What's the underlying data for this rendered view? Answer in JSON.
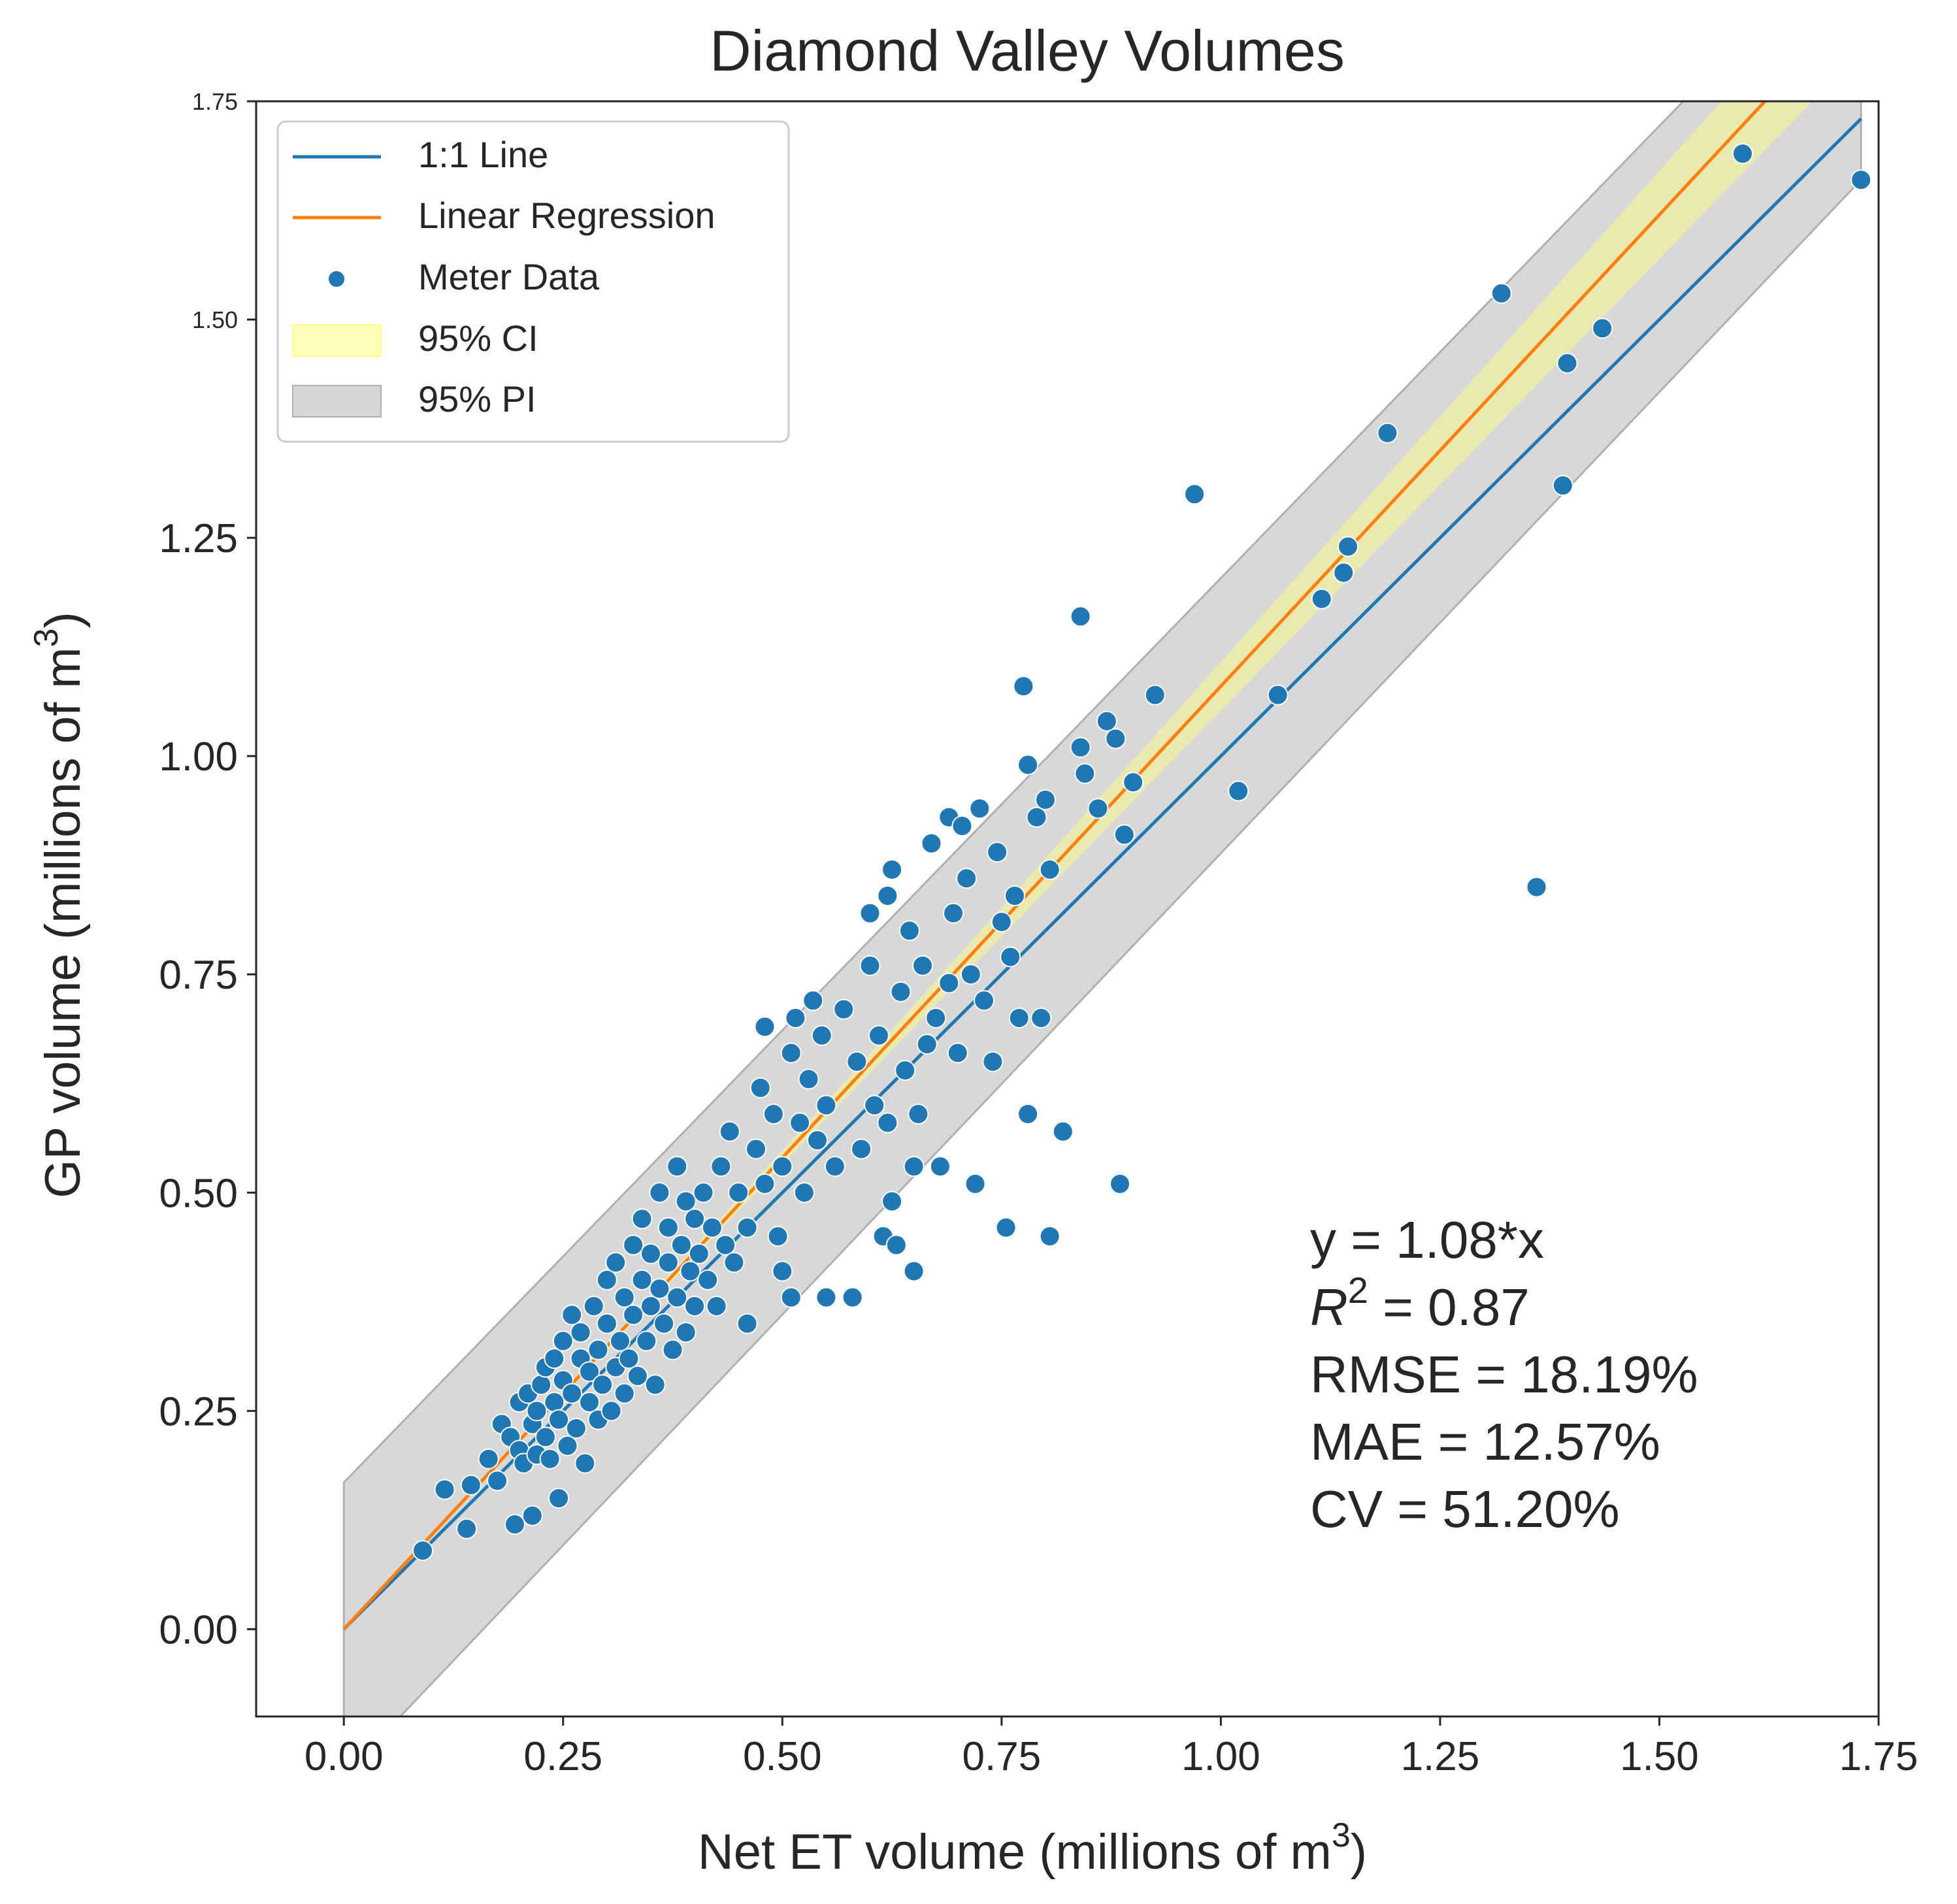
{
  "colors": {
    "one_to_one": "#1f77b4",
    "regression": "#ff7f0e",
    "points": "#1f77b4",
    "ci_fill": "#ffff80",
    "pi_fill": "#c8c8c8",
    "frame": "#262626"
  },
  "chart_data": {
    "type": "scatter",
    "title": "Diamond Valley Volumes",
    "xlabel_main": "Net ET volume (millions of m",
    "xlabel_sup": "3",
    "xlabel_tail": ")",
    "ylabel_main": "GP volume (millions of m",
    "ylabel_sup": "3",
    "ylabel_tail": ")",
    "xlim": [
      -0.1,
      1.75
    ],
    "ylim": [
      -0.1,
      1.75
    ],
    "xticks": [
      "0.00",
      "0.25",
      "0.50",
      "0.75",
      "1.00",
      "1.25",
      "1.50",
      "1.75"
    ],
    "yticks": [
      "0.00",
      "0.25",
      "0.50",
      "0.75",
      "1.00",
      "1.25",
      "1.50",
      "1.75"
    ],
    "grid": false,
    "legend_position": "top-left",
    "legend": [
      {
        "label": "1:1 Line",
        "kind": "line",
        "color_key": "one_to_one"
      },
      {
        "label": "Linear Regression",
        "kind": "line",
        "color_key": "regression"
      },
      {
        "label": "Meter Data",
        "kind": "marker",
        "color_key": "points"
      },
      {
        "label": "95% CI",
        "kind": "patch",
        "color_key": "ci_fill"
      },
      {
        "label": "95% PI",
        "kind": "patch",
        "color_key": "pi_fill"
      }
    ],
    "one_to_one_line": {
      "x": [
        0.0,
        1.73
      ],
      "y": [
        0.0,
        1.73
      ]
    },
    "regression": {
      "slope": 1.08,
      "x": [
        0.0,
        1.73
      ]
    },
    "ci_band": {
      "x": [
        0.0,
        0.2,
        0.4,
        0.6,
        0.8,
        1.0,
        1.2,
        1.4,
        1.6,
        1.73
      ],
      "lower": [
        0.0,
        0.213,
        0.426,
        0.637,
        0.845,
        1.052,
        1.259,
        1.466,
        1.673,
        1.807
      ],
      "upper": [
        0.0,
        0.219,
        0.438,
        0.659,
        0.883,
        1.108,
        1.333,
        1.558,
        1.783,
        1.929
      ]
    },
    "pi_band": {
      "x": [
        0.0,
        1.73
      ],
      "lower": [
        -0.168,
        1.66
      ],
      "upper": [
        0.168,
        1.96
      ]
    },
    "annotation": [
      "y = 1.08*x",
      "R",
      "2",
      " = 0.87",
      "RMSE = 18.19%",
      "MAE = 12.57%",
      "CV = 51.20%"
    ],
    "points": [
      [
        0.09,
        0.09
      ],
      [
        0.115,
        0.16
      ],
      [
        0.14,
        0.115
      ],
      [
        0.145,
        0.165
      ],
      [
        0.165,
        0.195
      ],
      [
        0.175,
        0.17
      ],
      [
        0.18,
        0.235
      ],
      [
        0.19,
        0.22
      ],
      [
        0.195,
        0.12
      ],
      [
        0.2,
        0.205
      ],
      [
        0.2,
        0.26
      ],
      [
        0.205,
        0.19
      ],
      [
        0.21,
        0.27
      ],
      [
        0.215,
        0.13
      ],
      [
        0.215,
        0.235
      ],
      [
        0.22,
        0.2
      ],
      [
        0.22,
        0.25
      ],
      [
        0.225,
        0.28
      ],
      [
        0.23,
        0.22
      ],
      [
        0.23,
        0.3
      ],
      [
        0.235,
        0.195
      ],
      [
        0.24,
        0.26
      ],
      [
        0.24,
        0.31
      ],
      [
        0.245,
        0.15
      ],
      [
        0.245,
        0.24
      ],
      [
        0.25,
        0.285
      ],
      [
        0.25,
        0.33
      ],
      [
        0.255,
        0.21
      ],
      [
        0.26,
        0.27
      ],
      [
        0.26,
        0.36
      ],
      [
        0.265,
        0.23
      ],
      [
        0.27,
        0.31
      ],
      [
        0.27,
        0.34
      ],
      [
        0.275,
        0.19
      ],
      [
        0.28,
        0.26
      ],
      [
        0.28,
        0.295
      ],
      [
        0.285,
        0.37
      ],
      [
        0.29,
        0.24
      ],
      [
        0.29,
        0.32
      ],
      [
        0.295,
        0.28
      ],
      [
        0.3,
        0.35
      ],
      [
        0.3,
        0.4
      ],
      [
        0.305,
        0.25
      ],
      [
        0.31,
        0.3
      ],
      [
        0.31,
        0.42
      ],
      [
        0.315,
        0.33
      ],
      [
        0.32,
        0.27
      ],
      [
        0.32,
        0.38
      ],
      [
        0.325,
        0.31
      ],
      [
        0.33,
        0.36
      ],
      [
        0.33,
        0.44
      ],
      [
        0.335,
        0.29
      ],
      [
        0.34,
        0.4
      ],
      [
        0.34,
        0.47
      ],
      [
        0.345,
        0.33
      ],
      [
        0.35,
        0.37
      ],
      [
        0.35,
        0.43
      ],
      [
        0.355,
        0.28
      ],
      [
        0.36,
        0.39
      ],
      [
        0.36,
        0.5
      ],
      [
        0.365,
        0.35
      ],
      [
        0.37,
        0.42
      ],
      [
        0.37,
        0.46
      ],
      [
        0.375,
        0.32
      ],
      [
        0.38,
        0.38
      ],
      [
        0.38,
        0.53
      ],
      [
        0.385,
        0.44
      ],
      [
        0.39,
        0.34
      ],
      [
        0.39,
        0.49
      ],
      [
        0.395,
        0.41
      ],
      [
        0.4,
        0.37
      ],
      [
        0.4,
        0.47
      ],
      [
        0.405,
        0.43
      ],
      [
        0.41,
        0.5
      ],
      [
        0.415,
        0.4
      ],
      [
        0.42,
        0.46
      ],
      [
        0.425,
        0.37
      ],
      [
        0.43,
        0.53
      ],
      [
        0.435,
        0.44
      ],
      [
        0.44,
        0.57
      ],
      [
        0.445,
        0.42
      ],
      [
        0.45,
        0.5
      ],
      [
        0.46,
        0.35
      ],
      [
        0.46,
        0.46
      ],
      [
        0.47,
        0.55
      ],
      [
        0.475,
        0.62
      ],
      [
        0.48,
        0.51
      ],
      [
        0.48,
        0.69
      ],
      [
        0.49,
        0.59
      ],
      [
        0.495,
        0.45
      ],
      [
        0.5,
        0.41
      ],
      [
        0.5,
        0.53
      ],
      [
        0.51,
        0.66
      ],
      [
        0.51,
        0.38
      ],
      [
        0.515,
        0.7
      ],
      [
        0.52,
        0.58
      ],
      [
        0.525,
        0.5
      ],
      [
        0.53,
        0.63
      ],
      [
        0.535,
        0.72
      ],
      [
        0.54,
        0.56
      ],
      [
        0.545,
        0.68
      ],
      [
        0.55,
        0.38
      ],
      [
        0.55,
        0.6
      ],
      [
        0.56,
        0.53
      ],
      [
        0.57,
        0.71
      ],
      [
        0.58,
        0.38
      ],
      [
        0.585,
        0.65
      ],
      [
        0.59,
        0.55
      ],
      [
        0.6,
        0.76
      ],
      [
        0.6,
        0.82
      ],
      [
        0.605,
        0.6
      ],
      [
        0.61,
        0.68
      ],
      [
        0.615,
        0.45
      ],
      [
        0.62,
        0.84
      ],
      [
        0.62,
        0.58
      ],
      [
        0.625,
        0.87
      ],
      [
        0.625,
        0.49
      ],
      [
        0.63,
        0.44
      ],
      [
        0.635,
        0.73
      ],
      [
        0.64,
        0.64
      ],
      [
        0.645,
        0.8
      ],
      [
        0.65,
        0.53
      ],
      [
        0.65,
        0.41
      ],
      [
        0.655,
        0.59
      ],
      [
        0.66,
        0.76
      ],
      [
        0.665,
        0.67
      ],
      [
        0.67,
        0.9
      ],
      [
        0.675,
        0.7
      ],
      [
        0.68,
        0.53
      ],
      [
        0.69,
        0.93
      ],
      [
        0.69,
        0.74
      ],
      [
        0.695,
        0.82
      ],
      [
        0.7,
        0.66
      ],
      [
        0.705,
        0.92
      ],
      [
        0.71,
        0.86
      ],
      [
        0.715,
        0.75
      ],
      [
        0.72,
        0.51
      ],
      [
        0.725,
        0.94
      ],
      [
        0.73,
        0.72
      ],
      [
        0.74,
        0.65
      ],
      [
        0.745,
        0.89
      ],
      [
        0.75,
        0.81
      ],
      [
        0.755,
        0.46
      ],
      [
        0.76,
        0.77
      ],
      [
        0.765,
        0.84
      ],
      [
        0.77,
        0.7
      ],
      [
        0.775,
        1.08
      ],
      [
        0.78,
        0.99
      ],
      [
        0.78,
        0.59
      ],
      [
        0.79,
        0.93
      ],
      [
        0.795,
        0.7
      ],
      [
        0.8,
        0.95
      ],
      [
        0.805,
        0.87
      ],
      [
        0.805,
        0.45
      ],
      [
        0.82,
        0.57
      ],
      [
        0.84,
        1.01
      ],
      [
        0.84,
        1.16
      ],
      [
        0.845,
        0.98
      ],
      [
        0.86,
        0.94
      ],
      [
        0.87,
        1.04
      ],
      [
        0.88,
        1.02
      ],
      [
        0.885,
        0.51
      ],
      [
        0.89,
        0.91
      ],
      [
        0.9,
        0.97
      ],
      [
        0.925,
        1.07
      ],
      [
        0.97,
        1.3
      ],
      [
        1.02,
        0.96
      ],
      [
        1.065,
        1.07
      ],
      [
        1.115,
        1.18
      ],
      [
        1.14,
        1.21
      ],
      [
        1.145,
        1.24
      ],
      [
        1.19,
        1.37
      ],
      [
        1.32,
        1.53
      ],
      [
        1.36,
        0.85
      ],
      [
        1.39,
        1.31
      ],
      [
        1.395,
        1.45
      ],
      [
        1.435,
        1.49
      ],
      [
        1.595,
        1.69
      ],
      [
        1.73,
        1.66
      ]
    ]
  }
}
